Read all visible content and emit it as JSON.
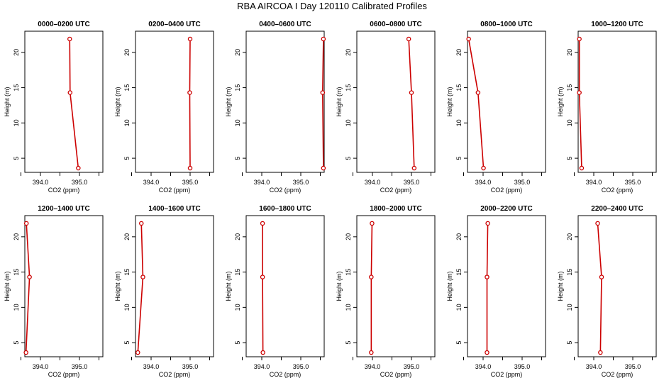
{
  "figure": {
    "title": "RBA AIRCOA I  Day 120110  Calibrated Profiles"
  },
  "chart_data": [
    {
      "type": "line",
      "title": "0000–0200 UTC",
      "xlabel": "CO2 (ppm)",
      "ylabel": "Height (m)",
      "xlim": [
        393.6,
        395.6
      ],
      "ylim": [
        3,
        23
      ],
      "xticks": [
        393.5,
        394.0,
        394.5,
        395.0,
        395.5
      ],
      "xtick_labels": [
        "",
        "394.0",
        "",
        "395.0",
        ""
      ],
      "yticks": [
        5,
        10,
        15,
        20
      ],
      "yticks_labels": [
        "5",
        "10",
        "15",
        "20"
      ],
      "series": [
        {
          "color": "#cc0000",
          "points": [
            {
              "x": 394.75,
              "y": 21.9
            },
            {
              "x": 394.76,
              "y": 14.3
            },
            {
              "x": 394.97,
              "y": 3.6
            }
          ]
        }
      ],
      "grid": false,
      "legend": "none"
    },
    {
      "type": "line",
      "title": "0200–0400 UTC",
      "xlabel": "CO2 (ppm)",
      "ylabel": "Height (m)",
      "xlim": [
        393.6,
        395.6
      ],
      "ylim": [
        3,
        23
      ],
      "xticks": [
        393.5,
        394.0,
        394.5,
        395.0,
        395.5
      ],
      "xtick_labels": [
        "",
        "394.0",
        "",
        "395.0",
        ""
      ],
      "yticks": [
        5,
        10,
        15,
        20
      ],
      "yticks_labels": [
        "5",
        "10",
        "15",
        "20"
      ],
      "series": [
        {
          "color": "#cc0000",
          "points": [
            {
              "x": 395.0,
              "y": 21.9
            },
            {
              "x": 394.99,
              "y": 14.3
            },
            {
              "x": 395.0,
              "y": 3.6
            }
          ]
        }
      ],
      "grid": false,
      "legend": "none"
    },
    {
      "type": "line",
      "title": "0400–0600 UTC",
      "xlabel": "CO2 (ppm)",
      "ylabel": "Height (m)",
      "xlim": [
        393.6,
        395.6
      ],
      "ylim": [
        3,
        23
      ],
      "xticks": [
        393.5,
        394.0,
        394.5,
        395.0,
        395.5
      ],
      "xtick_labels": [
        "",
        "394.0",
        "",
        "395.0",
        ""
      ],
      "yticks": [
        5,
        10,
        15,
        20
      ],
      "yticks_labels": [
        "5",
        "10",
        "15",
        "20"
      ],
      "series": [
        {
          "color": "#cc0000",
          "points": [
            {
              "x": 395.58,
              "y": 21.9
            },
            {
              "x": 395.56,
              "y": 14.3
            },
            {
              "x": 395.58,
              "y": 3.6
            }
          ]
        }
      ],
      "grid": false,
      "legend": "none"
    },
    {
      "type": "line",
      "title": "0600–0800 UTC",
      "xlabel": "CO2 (ppm)",
      "ylabel": "Height (m)",
      "xlim": [
        393.6,
        395.6
      ],
      "ylim": [
        3,
        23
      ],
      "xticks": [
        393.5,
        394.0,
        394.5,
        395.0,
        395.5
      ],
      "xtick_labels": [
        "",
        "394.0",
        "",
        "395.0",
        ""
      ],
      "yticks": [
        5,
        10,
        15,
        20
      ],
      "yticks_labels": [
        "5",
        "10",
        "15",
        "20"
      ],
      "series": [
        {
          "color": "#cc0000",
          "points": [
            {
              "x": 394.93,
              "y": 21.9
            },
            {
              "x": 395.0,
              "y": 14.3
            },
            {
              "x": 395.07,
              "y": 3.6
            }
          ]
        }
      ],
      "grid": false,
      "legend": "none"
    },
    {
      "type": "line",
      "title": "0800–1000 UTC",
      "xlabel": "CO2 (ppm)",
      "ylabel": "Height (m)",
      "xlim": [
        393.6,
        395.6
      ],
      "ylim": [
        3,
        23
      ],
      "xticks": [
        393.5,
        394.0,
        394.5,
        395.0,
        395.5
      ],
      "xtick_labels": [
        "",
        "394.0",
        "",
        "395.0",
        ""
      ],
      "yticks": [
        5,
        10,
        15,
        20
      ],
      "yticks_labels": [
        "5",
        "10",
        "15",
        "20"
      ],
      "series": [
        {
          "color": "#cc0000",
          "points": [
            {
              "x": 393.63,
              "y": 21.9
            },
            {
              "x": 393.87,
              "y": 14.3
            },
            {
              "x": 394.01,
              "y": 3.6
            }
          ]
        }
      ],
      "grid": false,
      "legend": "none"
    },
    {
      "type": "line",
      "title": "1000–1200 UTC",
      "xlabel": "CO2 (ppm)",
      "ylabel": "Height (m)",
      "xlim": [
        393.6,
        395.6
      ],
      "ylim": [
        3,
        23
      ],
      "xticks": [
        393.5,
        394.0,
        394.5,
        395.0,
        395.5
      ],
      "xtick_labels": [
        "",
        "394.0",
        "",
        "395.0",
        ""
      ],
      "yticks": [
        5,
        10,
        15,
        20
      ],
      "yticks_labels": [
        "5",
        "10",
        "15",
        "20"
      ],
      "series": [
        {
          "color": "#cc0000",
          "points": [
            {
              "x": 393.63,
              "y": 21.9
            },
            {
              "x": 393.63,
              "y": 14.3
            },
            {
              "x": 393.69,
              "y": 3.6
            }
          ]
        }
      ],
      "grid": false,
      "legend": "none"
    },
    {
      "type": "line",
      "title": "1200–1400 UTC",
      "xlabel": "CO2 (ppm)",
      "ylabel": "Height (m)",
      "xlim": [
        393.6,
        395.6
      ],
      "ylim": [
        3,
        23
      ],
      "xticks": [
        393.5,
        394.0,
        394.5,
        395.0,
        395.5
      ],
      "xtick_labels": [
        "",
        "394.0",
        "",
        "395.0",
        ""
      ],
      "yticks": [
        5,
        10,
        15,
        20
      ],
      "yticks_labels": [
        "5",
        "10",
        "15",
        "20"
      ],
      "series": [
        {
          "color": "#cc0000",
          "points": [
            {
              "x": 393.64,
              "y": 21.9
            },
            {
              "x": 393.72,
              "y": 14.3
            },
            {
              "x": 393.63,
              "y": 3.6
            }
          ]
        }
      ],
      "grid": false,
      "legend": "none"
    },
    {
      "type": "line",
      "title": "1400–1600 UTC",
      "xlabel": "CO2 (ppm)",
      "ylabel": "Height (m)",
      "xlim": [
        393.6,
        395.6
      ],
      "ylim": [
        3,
        23
      ],
      "xticks": [
        393.5,
        394.0,
        394.5,
        395.0,
        395.5
      ],
      "xtick_labels": [
        "",
        "394.0",
        "",
        "395.0",
        ""
      ],
      "yticks": [
        5,
        10,
        15,
        20
      ],
      "yticks_labels": [
        "5",
        "10",
        "15",
        "20"
      ],
      "series": [
        {
          "color": "#cc0000",
          "points": [
            {
              "x": 393.75,
              "y": 21.9
            },
            {
              "x": 393.79,
              "y": 14.3
            },
            {
              "x": 393.66,
              "y": 3.6
            }
          ]
        }
      ],
      "grid": false,
      "legend": "none"
    },
    {
      "type": "line",
      "title": "1600–1800 UTC",
      "xlabel": "CO2 (ppm)",
      "ylabel": "Height (m)",
      "xlim": [
        393.6,
        395.6
      ],
      "ylim": [
        3,
        23
      ],
      "xticks": [
        393.5,
        394.0,
        394.5,
        395.0,
        395.5
      ],
      "xtick_labels": [
        "",
        "394.0",
        "",
        "395.0",
        ""
      ],
      "yticks": [
        5,
        10,
        15,
        20
      ],
      "yticks_labels": [
        "5",
        "10",
        "15",
        "20"
      ],
      "series": [
        {
          "color": "#cc0000",
          "points": [
            {
              "x": 394.02,
              "y": 21.9
            },
            {
              "x": 394.02,
              "y": 14.3
            },
            {
              "x": 394.03,
              "y": 3.6
            }
          ]
        }
      ],
      "grid": false,
      "legend": "none"
    },
    {
      "type": "line",
      "title": "1800–2000 UTC",
      "xlabel": "CO2 (ppm)",
      "ylabel": "Height (m)",
      "xlim": [
        393.6,
        395.6
      ],
      "ylim": [
        3,
        23
      ],
      "xticks": [
        393.5,
        394.0,
        394.5,
        395.0,
        395.5
      ],
      "xtick_labels": [
        "",
        "394.0",
        "",
        "395.0",
        ""
      ],
      "yticks": [
        5,
        10,
        15,
        20
      ],
      "yticks_labels": [
        "5",
        "10",
        "15",
        "20"
      ],
      "series": [
        {
          "color": "#cc0000",
          "points": [
            {
              "x": 393.99,
              "y": 21.9
            },
            {
              "x": 393.97,
              "y": 14.3
            },
            {
              "x": 393.97,
              "y": 3.6
            }
          ]
        }
      ],
      "grid": false,
      "legend": "none"
    },
    {
      "type": "line",
      "title": "2000–2200 UTC",
      "xlabel": "CO2 (ppm)",
      "ylabel": "Height (m)",
      "xlim": [
        393.6,
        395.6
      ],
      "ylim": [
        3,
        23
      ],
      "xticks": [
        393.5,
        394.0,
        394.5,
        395.0,
        395.5
      ],
      "xtick_labels": [
        "",
        "394.0",
        "",
        "395.0",
        ""
      ],
      "yticks": [
        5,
        10,
        15,
        20
      ],
      "yticks_labels": [
        "5",
        "10",
        "15",
        "20"
      ],
      "series": [
        {
          "color": "#cc0000",
          "points": [
            {
              "x": 394.12,
              "y": 21.9
            },
            {
              "x": 394.1,
              "y": 14.3
            },
            {
              "x": 394.1,
              "y": 3.6
            }
          ]
        }
      ],
      "grid": false,
      "legend": "none"
    },
    {
      "type": "line",
      "title": "2200–2400 UTC",
      "xlabel": "CO2 (ppm)",
      "ylabel": "Height (m)",
      "xlim": [
        393.6,
        395.6
      ],
      "ylim": [
        3,
        23
      ],
      "xticks": [
        393.5,
        394.0,
        394.5,
        395.0,
        395.5
      ],
      "xtick_labels": [
        "",
        "394.0",
        "",
        "395.0",
        ""
      ],
      "yticks": [
        5,
        10,
        15,
        20
      ],
      "yticks_labels": [
        "5",
        "10",
        "15",
        "20"
      ],
      "series": [
        {
          "color": "#cc0000",
          "points": [
            {
              "x": 394.1,
              "y": 21.9
            },
            {
              "x": 394.2,
              "y": 14.3
            },
            {
              "x": 394.17,
              "y": 3.6
            }
          ]
        }
      ],
      "grid": false,
      "legend": "none"
    }
  ]
}
